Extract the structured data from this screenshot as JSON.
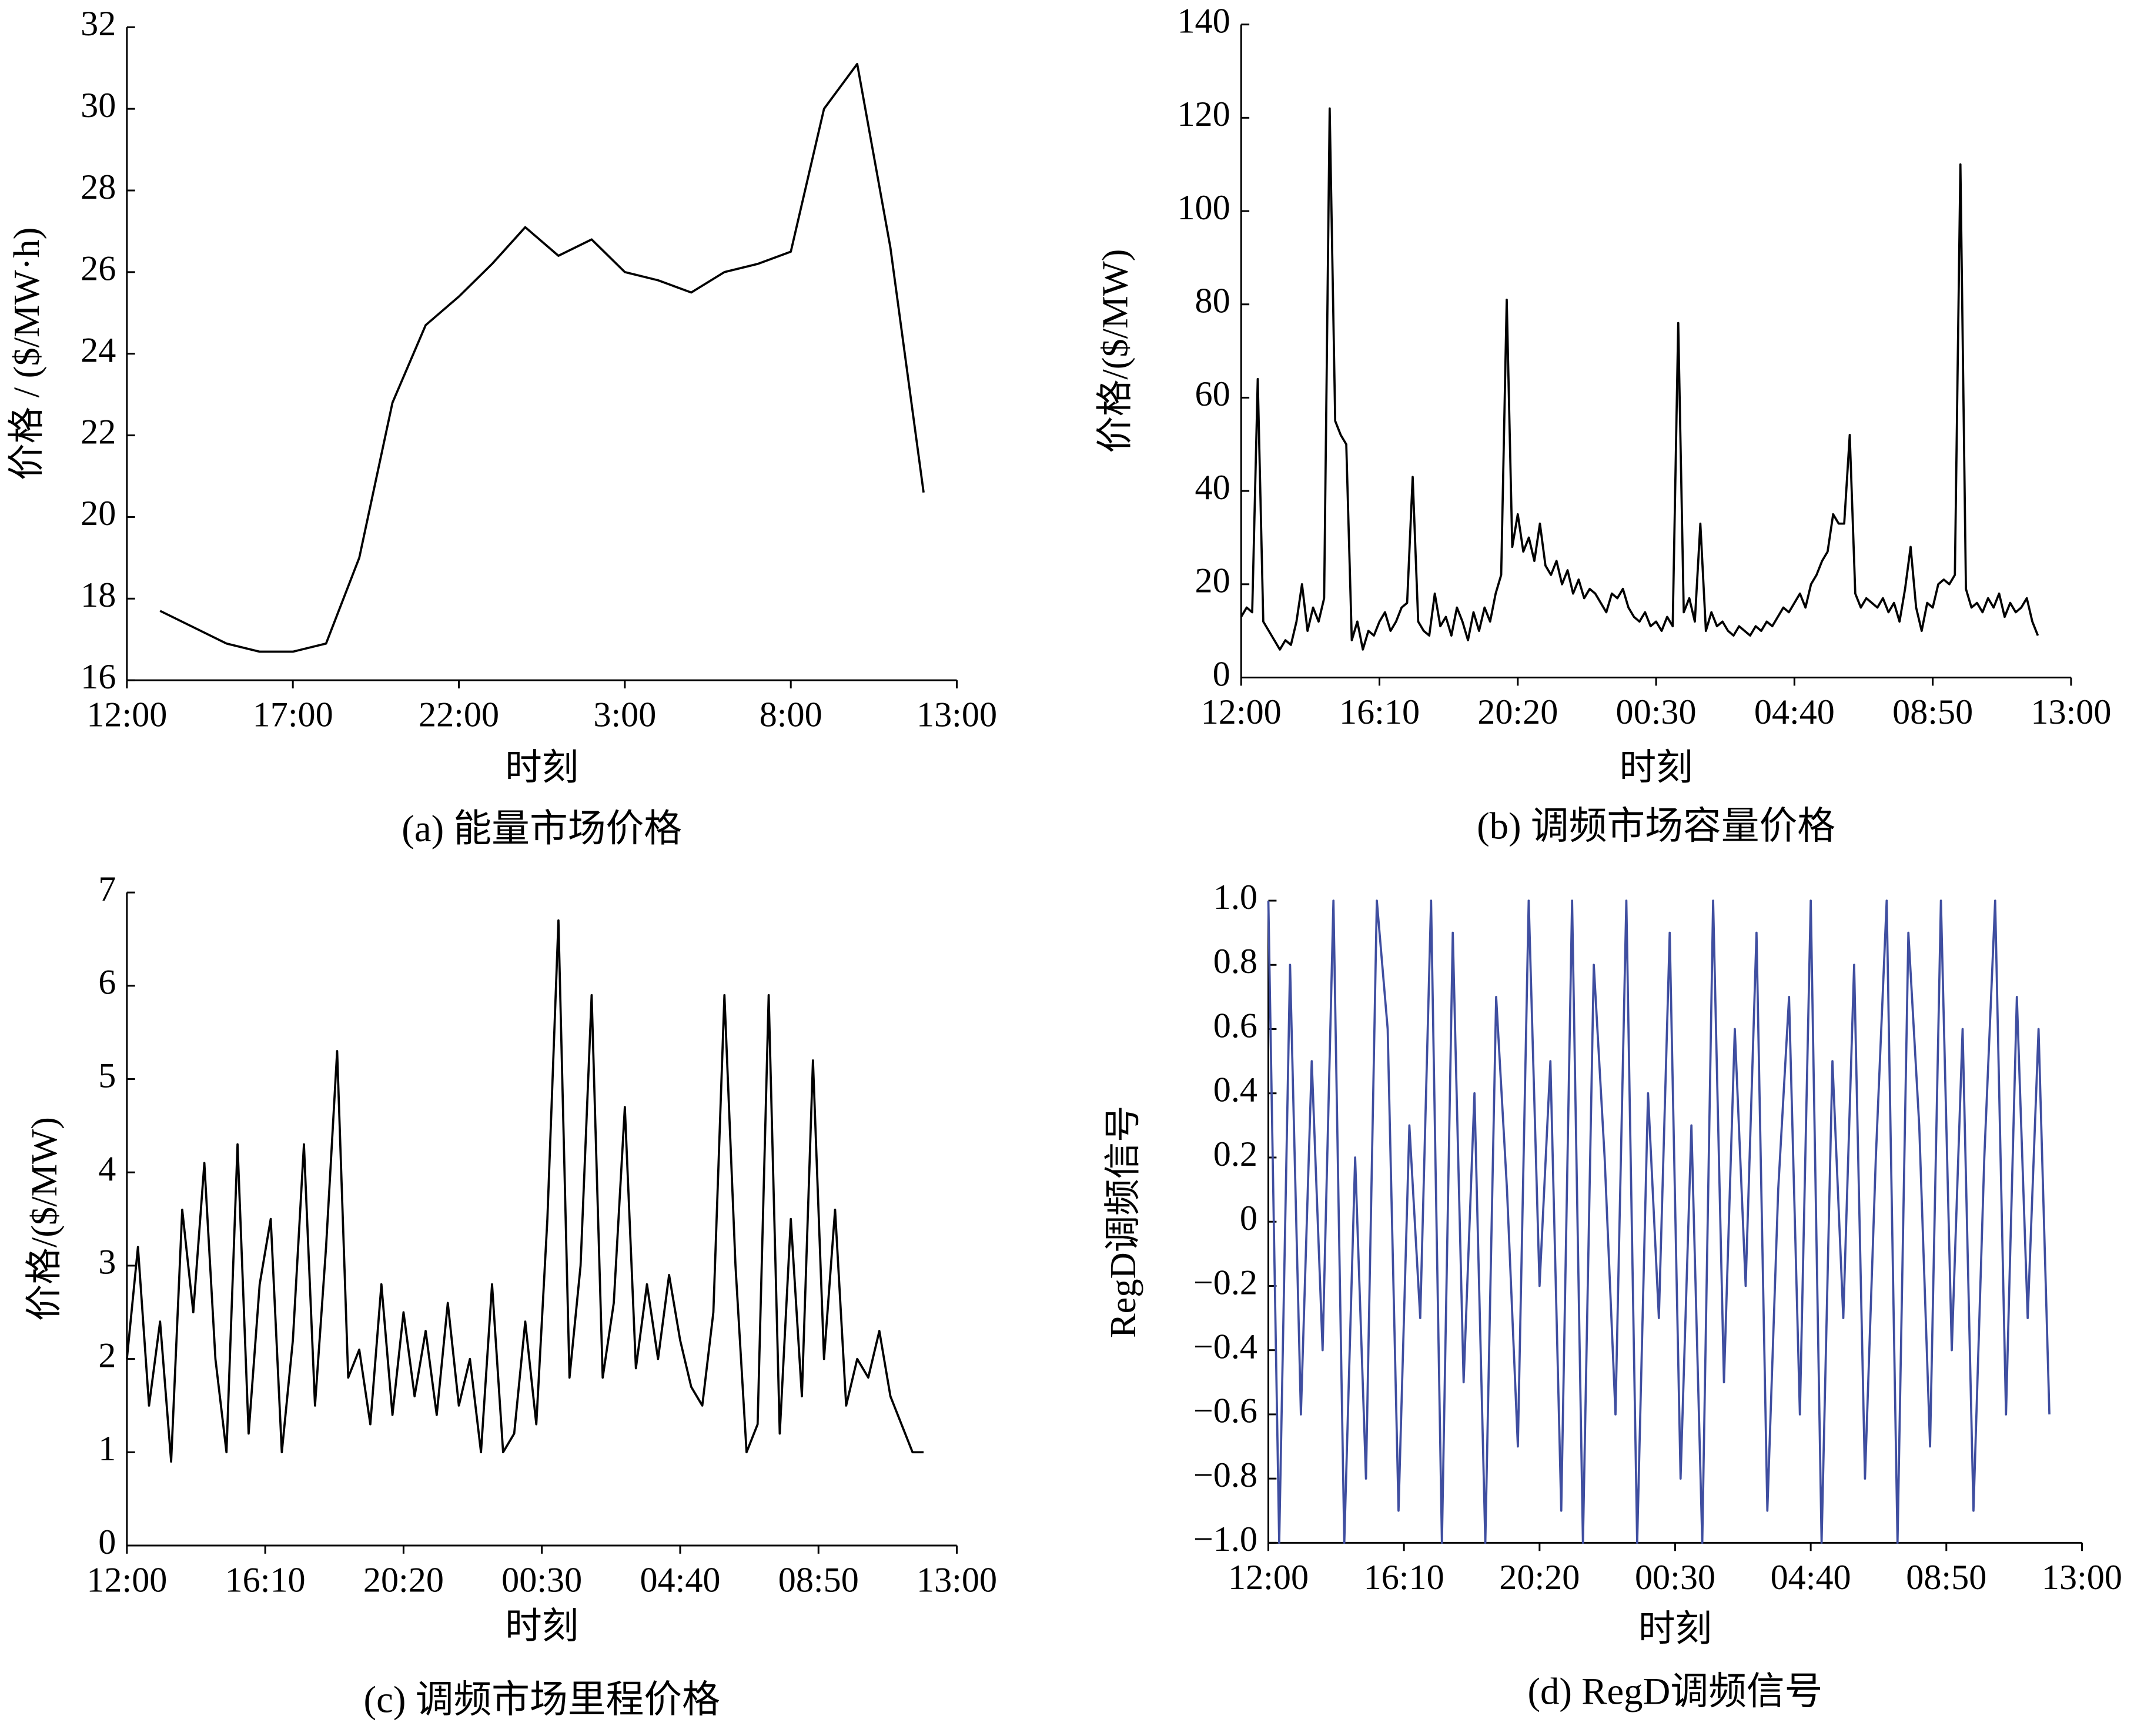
{
  "chart_data": [
    {
      "type": "line",
      "caption": "(a)  能量市场价格",
      "ylabel": "价格 / ($/MW·h)",
      "xlabel": "时刻",
      "x": [
        1,
        2,
        3,
        4,
        5,
        6,
        7,
        8,
        9,
        10,
        11,
        12,
        13,
        14,
        15,
        16,
        17,
        18,
        19,
        20,
        21,
        22,
        23,
        24
      ],
      "series": [
        {
          "color": "#000000",
          "values": [
            17.7,
            17.3,
            16.9,
            16.7,
            16.7,
            16.9,
            19,
            22.8,
            24.7,
            25.4,
            26.2,
            27.1,
            26.4,
            26.8,
            26,
            25.8,
            25.5,
            26,
            26.2,
            26.5,
            30,
            31.1,
            26.6,
            20.6
          ]
        }
      ],
      "xlim": [
        0,
        25
      ],
      "xticks": [
        {
          "value": 0,
          "label": "12:00"
        },
        {
          "value": 5,
          "label": "17:00"
        },
        {
          "value": 10,
          "label": "22:00"
        },
        {
          "value": 15,
          "label": "3:00"
        },
        {
          "value": 20,
          "label": "8:00"
        },
        {
          "value": 25,
          "label": "13:00"
        }
      ],
      "ylim": [
        16,
        32
      ],
      "yticks": [
        16,
        18,
        20,
        22,
        24,
        26,
        28,
        30,
        32
      ]
    },
    {
      "type": "line",
      "caption": "(b)  调频市场容量价格",
      "ylabel": "价格/($/MW)",
      "xlabel": "时刻",
      "x": [
        0,
        10,
        20,
        30,
        40,
        50,
        60,
        70,
        80,
        90,
        100,
        110,
        120,
        130,
        140,
        150,
        160,
        170,
        180,
        190,
        200,
        210,
        220,
        230,
        240,
        250,
        260,
        270,
        280,
        290,
        300,
        310,
        320,
        330,
        340,
        350,
        360,
        370,
        380,
        390,
        400,
        410,
        420,
        430,
        440,
        450,
        460,
        470,
        480,
        490,
        500,
        510,
        520,
        530,
        540,
        550,
        560,
        570,
        580,
        590,
        600,
        610,
        620,
        630,
        640,
        650,
        660,
        670,
        680,
        690,
        700,
        710,
        720,
        730,
        740,
        750,
        760,
        770,
        780,
        790,
        800,
        810,
        820,
        830,
        840,
        850,
        860,
        870,
        880,
        890,
        900,
        910,
        920,
        930,
        940,
        950,
        960,
        970,
        980,
        990,
        1000,
        1010,
        1020,
        1030,
        1040,
        1050,
        1060,
        1070,
        1080,
        1090,
        1100,
        1110,
        1120,
        1130,
        1140,
        1150,
        1160,
        1170,
        1180,
        1190,
        1200,
        1210,
        1220,
        1230,
        1240,
        1250,
        1260,
        1270,
        1280,
        1290,
        1300,
        1310,
        1320,
        1330,
        1340,
        1350,
        1360,
        1370,
        1380,
        1390,
        1400,
        1410,
        1420,
        1430,
        1440
      ],
      "series": [
        {
          "color": "#000000",
          "values": [
            13,
            15,
            14,
            64,
            12,
            10,
            8,
            6,
            8,
            7,
            12,
            20,
            10,
            15,
            12,
            17,
            122,
            55,
            52,
            50,
            8,
            12,
            6,
            10,
            9,
            12,
            14,
            10,
            12,
            15,
            16,
            43,
            12,
            10,
            9,
            18,
            11,
            13,
            9,
            15,
            12,
            8,
            14,
            10,
            15,
            12,
            18,
            22,
            81,
            28,
            35,
            27,
            30,
            25,
            33,
            24,
            22,
            25,
            20,
            23,
            18,
            21,
            17,
            19,
            18,
            16,
            14,
            18,
            17,
            19,
            15,
            13,
            12,
            14,
            11,
            12,
            10,
            13,
            11,
            76,
            14,
            17,
            12,
            33,
            10,
            14,
            11,
            12,
            10,
            9,
            11,
            10,
            9,
            11,
            10,
            12,
            11,
            13,
            15,
            14,
            16,
            18,
            15,
            20,
            22,
            25,
            27,
            35,
            33,
            33,
            52,
            18,
            15,
            17,
            16,
            15,
            17,
            14,
            16,
            12,
            19,
            28,
            15,
            10,
            16,
            15,
            20,
            21,
            20,
            22,
            110,
            19,
            15,
            16,
            14,
            17,
            15,
            18,
            13,
            16,
            14,
            15,
            17,
            12,
            9
          ]
        }
      ],
      "xlim": [
        0,
        1500
      ],
      "xticks": [
        {
          "value": 0,
          "label": "12:00"
        },
        {
          "value": 250,
          "label": "16:10"
        },
        {
          "value": 500,
          "label": "20:20"
        },
        {
          "value": 750,
          "label": "00:30"
        },
        {
          "value": 1000,
          "label": "04:40"
        },
        {
          "value": 1250,
          "label": "08:50"
        },
        {
          "value": 1500,
          "label": "13:00"
        }
      ],
      "ylim": [
        0,
        140
      ],
      "yticks": [
        0,
        20,
        40,
        60,
        80,
        100,
        120,
        140
      ]
    },
    {
      "type": "line",
      "caption": "(c)  调频市场里程价格",
      "ylabel": "价格/($/MW)",
      "xlabel": "时刻",
      "x": [
        0,
        20,
        40,
        60,
        80,
        100,
        120,
        140,
        160,
        180,
        200,
        220,
        240,
        260,
        280,
        300,
        320,
        340,
        360,
        380,
        400,
        420,
        440,
        460,
        480,
        500,
        520,
        540,
        560,
        580,
        600,
        620,
        640,
        660,
        680,
        700,
        720,
        740,
        760,
        780,
        800,
        820,
        840,
        860,
        880,
        900,
        920,
        940,
        960,
        980,
        1000,
        1020,
        1040,
        1060,
        1080,
        1100,
        1120,
        1140,
        1160,
        1180,
        1200,
        1220,
        1240,
        1260,
        1280,
        1300,
        1320,
        1340,
        1360,
        1380,
        1400,
        1420,
        1440
      ],
      "series": [
        {
          "color": "#000000",
          "values": [
            2.0,
            3.2,
            1.5,
            2.4,
            0.9,
            3.6,
            2.5,
            4.1,
            2.0,
            1.0,
            4.3,
            1.2,
            2.8,
            3.5,
            1.0,
            2.2,
            4.3,
            1.5,
            3.2,
            5.3,
            1.8,
            2.1,
            1.3,
            2.8,
            1.4,
            2.5,
            1.6,
            2.3,
            1.4,
            2.6,
            1.5,
            2.0,
            1.0,
            2.8,
            1.0,
            1.2,
            2.4,
            1.3,
            3.5,
            6.7,
            1.8,
            3.0,
            5.9,
            1.8,
            2.6,
            4.7,
            1.9,
            2.8,
            2.0,
            2.9,
            2.2,
            1.7,
            1.5,
            2.5,
            5.9,
            3.0,
            1.0,
            1.3,
            5.9,
            1.2,
            3.5,
            1.6,
            5.2,
            2.0,
            3.6,
            1.5,
            2.0,
            1.8,
            2.3,
            1.6,
            1.3,
            1.0,
            1.0
          ]
        }
      ],
      "xlim": [
        0,
        1500
      ],
      "xticks": [
        {
          "value": 0,
          "label": "12:00"
        },
        {
          "value": 250,
          "label": "16:10"
        },
        {
          "value": 500,
          "label": "20:20"
        },
        {
          "value": 750,
          "label": "00:30"
        },
        {
          "value": 1000,
          "label": "04:40"
        },
        {
          "value": 1250,
          "label": "08:50"
        },
        {
          "value": 1500,
          "label": "13:00"
        }
      ],
      "ylim": [
        0,
        7
      ],
      "yticks": [
        0,
        1,
        2,
        3,
        4,
        5,
        6,
        7
      ]
    },
    {
      "type": "line",
      "caption": "(d)  RegD调频信号",
      "ylabel": "RegD调频信号",
      "xlabel": "时刻",
      "x": [
        0,
        20,
        40,
        60,
        80,
        100,
        120,
        140,
        160,
        180,
        200,
        220,
        240,
        260,
        280,
        300,
        320,
        340,
        360,
        380,
        400,
        420,
        440,
        460,
        480,
        500,
        520,
        540,
        560,
        580,
        600,
        620,
        640,
        660,
        680,
        700,
        720,
        740,
        760,
        780,
        800,
        820,
        840,
        860,
        880,
        900,
        920,
        940,
        960,
        980,
        1000,
        1020,
        1040,
        1060,
        1080,
        1100,
        1120,
        1140,
        1160,
        1180,
        1200,
        1220,
        1240,
        1260,
        1280,
        1300,
        1320,
        1340,
        1360,
        1380,
        1400,
        1420,
        1440
      ],
      "series": [
        {
          "color": "#3f4ea0",
          "values": [
            1,
            -1,
            0.8,
            -0.6,
            0.5,
            -0.4,
            1,
            -1,
            0.2,
            -0.8,
            1,
            0.6,
            -0.9,
            0.3,
            -0.3,
            1,
            -1,
            0.9,
            -0.5,
            0.4,
            -1,
            0.7,
            0.1,
            -0.7,
            1,
            -0.2,
            0.5,
            -0.9,
            1,
            -1,
            0.8,
            0.2,
            -0.6,
            1,
            -1,
            0.4,
            -0.3,
            0.9,
            -0.8,
            0.3,
            -1,
            1,
            -0.5,
            0.6,
            -0.2,
            0.9,
            -0.9,
            0.1,
            0.7,
            -0.6,
            1,
            -1,
            0.5,
            -0.3,
            0.8,
            -0.8,
            0.2,
            1,
            -1,
            0.9,
            0.3,
            -0.7,
            1,
            -0.4,
            0.6,
            -0.9,
            0.2,
            1,
            -0.6,
            0.7,
            -0.3,
            0.6,
            -0.6
          ]
        }
      ],
      "xlim": [
        0,
        1500
      ],
      "xticks": [
        {
          "value": 0,
          "label": "12:00"
        },
        {
          "value": 250,
          "label": "16:10"
        },
        {
          "value": 500,
          "label": "20:20"
        },
        {
          "value": 750,
          "label": "00:30"
        },
        {
          "value": 1000,
          "label": "04:40"
        },
        {
          "value": 1250,
          "label": "08:50"
        },
        {
          "value": 1500,
          "label": "13:00"
        }
      ],
      "ylim": [
        -1,
        1
      ],
      "yticks": [
        {
          "value": -1,
          "label": "−1.0"
        },
        {
          "value": -0.8,
          "label": "−0.8"
        },
        {
          "value": -0.6,
          "label": "−0.6"
        },
        {
          "value": -0.4,
          "label": "−0.4"
        },
        {
          "value": -0.2,
          "label": "−0.2"
        },
        0,
        {
          "value": 0.2,
          "label": "0.2"
        },
        {
          "value": 0.4,
          "label": "0.4"
        },
        {
          "value": 0.6,
          "label": "0.6"
        },
        {
          "value": 0.8,
          "label": "0.8"
        },
        {
          "value": 1,
          "label": "1.0"
        }
      ]
    }
  ]
}
